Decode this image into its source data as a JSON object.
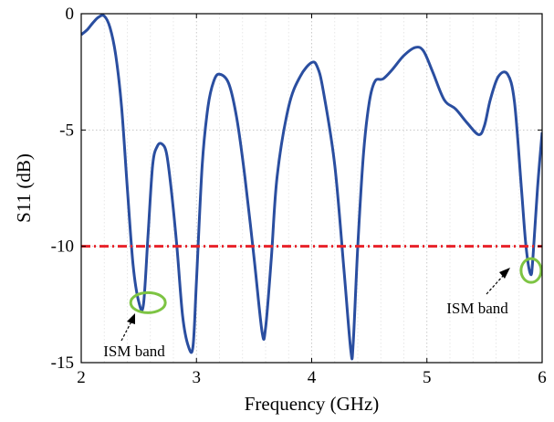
{
  "chart_data": {
    "type": "line",
    "title": "",
    "xlabel": "Frequency (GHz)",
    "ylabel": "S11 (dB)",
    "xlim": [
      2,
      6
    ],
    "ylim": [
      -15,
      0
    ],
    "xticks": [
      2,
      3,
      4,
      5,
      6
    ],
    "xtick_labels": [
      "2",
      "3",
      "4",
      "5",
      "6"
    ],
    "yticks": [
      0,
      -5,
      -10,
      -15
    ],
    "ytick_labels": [
      "0",
      "-5",
      "-10",
      "-15"
    ],
    "grid": {
      "x": true,
      "y": true,
      "minor_x": true,
      "style": "dotted"
    },
    "series": [
      {
        "color": "#2a4ea0",
        "style": "solid",
        "x": [
          2.0,
          2.05,
          2.1,
          2.15,
          2.2,
          2.25,
          2.3,
          2.35,
          2.4,
          2.45,
          2.5,
          2.54,
          2.58,
          2.62,
          2.66,
          2.7,
          2.74,
          2.78,
          2.83,
          2.88,
          2.93,
          2.97,
          3.0,
          3.05,
          3.1,
          3.15,
          3.2,
          3.28,
          3.35,
          3.42,
          3.5,
          3.57,
          3.6,
          3.65,
          3.7,
          3.8,
          3.9,
          4.0,
          4.05,
          4.1,
          4.2,
          4.28,
          4.34,
          4.36,
          4.4,
          4.45,
          4.5,
          4.55,
          4.62,
          4.7,
          4.8,
          4.9,
          4.97,
          5.05,
          5.15,
          5.25,
          5.35,
          5.45,
          5.5,
          5.55,
          5.62,
          5.7,
          5.76,
          5.82,
          5.86,
          5.9,
          5.92,
          5.96,
          6.0
        ],
        "y": [
          -0.9,
          -0.7,
          -0.4,
          -0.15,
          -0.1,
          -0.6,
          -1.8,
          -4.0,
          -7.5,
          -10.8,
          -12.4,
          -12.5,
          -9.5,
          -6.5,
          -5.7,
          -5.6,
          -6.0,
          -7.5,
          -10.0,
          -13.0,
          -14.3,
          -14.3,
          -11.5,
          -6.5,
          -4.0,
          -2.9,
          -2.6,
          -3.0,
          -4.5,
          -7.0,
          -10.5,
          -13.7,
          -13.5,
          -10.5,
          -7.0,
          -4.0,
          -2.7,
          -2.1,
          -2.3,
          -3.3,
          -6.5,
          -11.0,
          -14.5,
          -14.2,
          -10.0,
          -6.0,
          -3.8,
          -2.9,
          -2.8,
          -2.4,
          -1.8,
          -1.45,
          -1.6,
          -2.5,
          -3.7,
          -4.1,
          -4.7,
          -5.2,
          -4.8,
          -3.7,
          -2.7,
          -2.6,
          -3.8,
          -7.5,
          -10.0,
          -11.2,
          -10.5,
          -7.5,
          -5.1
        ]
      },
      {
        "color": "#e8232a",
        "style": "dash-dot",
        "x": [
          2,
          6
        ],
        "y": [
          -10,
          -10
        ]
      }
    ],
    "annotations": [
      {
        "text": "ISM band",
        "ellipse_center": [
          2.54,
          -12.5
        ],
        "text_at": [
          2.55,
          -14.4
        ]
      },
      {
        "text": "ISM band",
        "ellipse_center": [
          5.92,
          -11.0
        ],
        "text_at": [
          5.58,
          -12.8
        ]
      }
    ],
    "colors": {
      "curve": "#2a4ea0",
      "threshold": "#e8232a",
      "ellipse": "#7dc443"
    }
  }
}
